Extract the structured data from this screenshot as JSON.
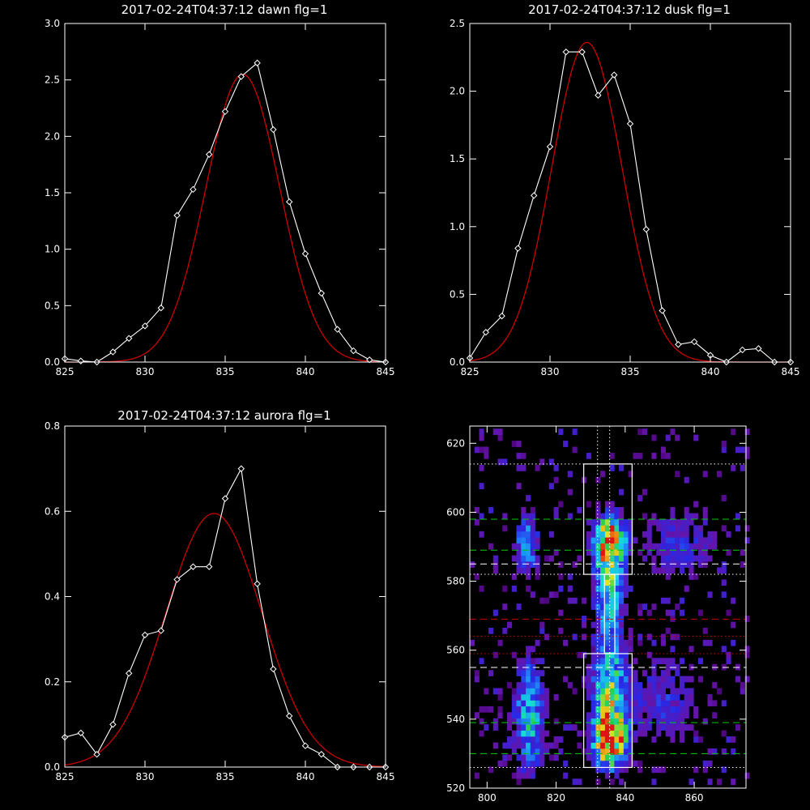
{
  "colors": {
    "background": "#000000",
    "axes": "#ffffff",
    "data_line": "#ffffff",
    "fit_line": "#cc0000"
  },
  "chart_data": [
    {
      "type": "line",
      "title": "2017-02-24T04:37:12 dawn flg=1",
      "xlim": [
        825,
        845
      ],
      "ylim": [
        0,
        3.0
      ],
      "xticks": [
        "825",
        "830",
        "835",
        "840",
        "845"
      ],
      "yticks": [
        "0.0",
        "0.5",
        "1.0",
        "1.5",
        "2.0",
        "2.5",
        "3.0"
      ],
      "grid": false,
      "series": [
        {
          "style": "white line with diamond markers",
          "x": [
            825,
            826,
            827,
            828,
            829,
            830,
            831,
            832,
            833,
            834,
            835,
            836,
            837,
            838,
            839,
            840,
            841,
            842,
            843,
            844,
            845
          ],
          "y": [
            0.03,
            0.01,
            0.0,
            0.09,
            0.21,
            0.32,
            0.48,
            1.3,
            1.53,
            1.84,
            2.22,
            2.53,
            2.65,
            2.06,
            1.42,
            0.96,
            0.61,
            0.29,
            0.1,
            0.02,
            0.0
          ]
        },
        {
          "style": "red gaussian fit",
          "fit": {
            "amplitude": 2.55,
            "center": 836.1,
            "sigma": 2.3
          }
        }
      ]
    },
    {
      "type": "line",
      "title": "2017-02-24T04:37:12 dusk flg=1",
      "xlim": [
        825,
        845
      ],
      "ylim": [
        0,
        2.5
      ],
      "xticks": [
        "825",
        "830",
        "835",
        "840",
        "845"
      ],
      "yticks": [
        "0.0",
        "0.5",
        "1.0",
        "1.5",
        "2.0",
        "2.5"
      ],
      "grid": false,
      "series": [
        {
          "style": "white line with diamond markers",
          "x": [
            825,
            826,
            827,
            828,
            829,
            830,
            831,
            832,
            833,
            834,
            835,
            836,
            837,
            838,
            839,
            840,
            841,
            842,
            843,
            844,
            845
          ],
          "y": [
            0.03,
            0.22,
            0.34,
            0.84,
            1.23,
            1.59,
            2.29,
            2.29,
            1.97,
            2.12,
            1.76,
            0.98,
            0.38,
            0.13,
            0.15,
            0.05,
            0.0,
            0.09,
            0.1,
            0.0,
            0.0
          ]
        },
        {
          "style": "red gaussian fit",
          "fit": {
            "amplitude": 2.36,
            "center": 832.3,
            "sigma": 2.2
          }
        }
      ]
    },
    {
      "type": "line",
      "title": "2017-02-24T04:37:12 aurora flg=1",
      "xlim": [
        825,
        845
      ],
      "ylim": [
        0,
        0.8
      ],
      "xticks": [
        "825",
        "830",
        "835",
        "840",
        "845"
      ],
      "yticks": [
        "0.0",
        "0.2",
        "0.4",
        "0.6",
        "0.8"
      ],
      "grid": false,
      "series": [
        {
          "style": "white line with diamond markers",
          "x": [
            825,
            826,
            827,
            828,
            829,
            830,
            831,
            832,
            833,
            834,
            835,
            836,
            837,
            838,
            839,
            840,
            841,
            842,
            843,
            844,
            845
          ],
          "y": [
            0.07,
            0.08,
            0.03,
            0.1,
            0.22,
            0.31,
            0.32,
            0.44,
            0.47,
            0.47,
            0.63,
            0.7,
            0.43,
            0.23,
            0.12,
            0.05,
            0.03,
            0.0,
            0.0,
            0.0,
            0.0
          ]
        },
        {
          "style": "red gaussian fit",
          "fit": {
            "amplitude": 0.595,
            "center": 834.3,
            "sigma": 3.0
          }
        }
      ]
    },
    {
      "type": "heatmap",
      "xlim": [
        795,
        875
      ],
      "ylim": [
        520,
        625
      ],
      "xticks": [
        "800",
        "820",
        "840",
        "860"
      ],
      "yticks": [
        "520",
        "540",
        "560",
        "580",
        "600",
        "620"
      ],
      "colormap": "rainbow (black-purple-blue-cyan-green-yellow-red)",
      "bright_regions": [
        {
          "x_range": [
            828,
            842
          ],
          "y_range": [
            526,
            600
          ],
          "peak": "red near x=835, y=533 and y=591"
        },
        {
          "x_range": [
            808,
            816
          ],
          "y_range": [
            530,
            560
          ]
        },
        {
          "x_range": [
            808,
            814
          ],
          "y_range": [
            583,
            596
          ]
        }
      ],
      "boxes": [
        {
          "x_range": [
            828,
            842
          ],
          "y_range": [
            526,
            559
          ],
          "color": "#ffffff"
        },
        {
          "x_range": [
            828,
            842
          ],
          "y_range": [
            582,
            614
          ],
          "color": "#ffffff"
        },
        {
          "x_range": [
            834,
            837
          ],
          "y_range": [
            559,
            582
          ],
          "color": "#ffffff"
        }
      ],
      "vertical_dotted_lines_x": [
        832,
        835.5
      ],
      "horizontal_lines": [
        {
          "y": 614,
          "style": "dotted",
          "color": "#ffffff"
        },
        {
          "y": 598,
          "style": "dashed",
          "color": "#00cc00"
        },
        {
          "y": 589,
          "style": "dashed",
          "color": "#00cc00"
        },
        {
          "y": 585,
          "style": "dashed",
          "color": "#ffffff"
        },
        {
          "y": 582,
          "style": "dotted",
          "color": "#ffffff"
        },
        {
          "y": 569,
          "style": "dashed",
          "color": "#cc0000"
        },
        {
          "y": 564,
          "style": "dotted",
          "color": "#cc0000"
        },
        {
          "y": 559,
          "style": "dotted",
          "color": "#cc0000"
        },
        {
          "y": 555,
          "style": "dashed",
          "color": "#ffffff"
        },
        {
          "y": 539,
          "style": "dashed",
          "color": "#00cc00"
        },
        {
          "y": 530,
          "style": "dashed",
          "color": "#00cc00"
        },
        {
          "y": 526,
          "style": "dotted",
          "color": "#ffffff"
        }
      ]
    }
  ]
}
